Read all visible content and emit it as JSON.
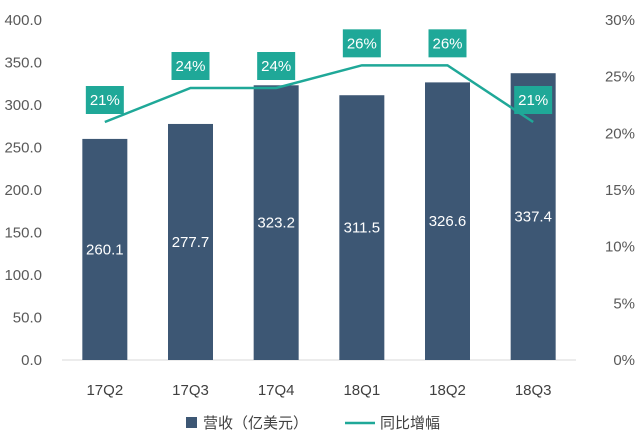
{
  "chart_data": {
    "type": "bar+line",
    "categories": [
      "17Q2",
      "17Q3",
      "17Q4",
      "18Q1",
      "18Q2",
      "18Q3"
    ],
    "series": [
      {
        "name": "营收（亿美元）",
        "type": "bar",
        "axis": "left",
        "values": [
          260.1,
          277.7,
          323.2,
          311.5,
          326.6,
          337.4
        ],
        "labels": [
          "260.1",
          "277.7",
          "323.2",
          "311.5",
          "326.6",
          "337.4"
        ]
      },
      {
        "name": "同比增幅",
        "type": "line",
        "axis": "right",
        "values": [
          21,
          24,
          24,
          26,
          26,
          21
        ],
        "labels": [
          "21%",
          "24%",
          "24%",
          "26%",
          "26%",
          "21%"
        ]
      }
    ],
    "y_left": {
      "min": 0,
      "max": 400,
      "step": 50,
      "ticks": [
        "0.0",
        "50.0",
        "100.0",
        "150.0",
        "200.0",
        "250.0",
        "300.0",
        "350.0",
        "400.0"
      ]
    },
    "y_right": {
      "min": 0,
      "max": 30,
      "step": 5,
      "ticks": [
        "0%",
        "5%",
        "10%",
        "15%",
        "20%",
        "25%",
        "30%"
      ]
    },
    "legend": {
      "position": "bottom"
    },
    "colors": {
      "bar": "#3d5774",
      "line": "#1fa898",
      "label_box": "#1fa898",
      "axis": "#d9d9d9"
    }
  }
}
